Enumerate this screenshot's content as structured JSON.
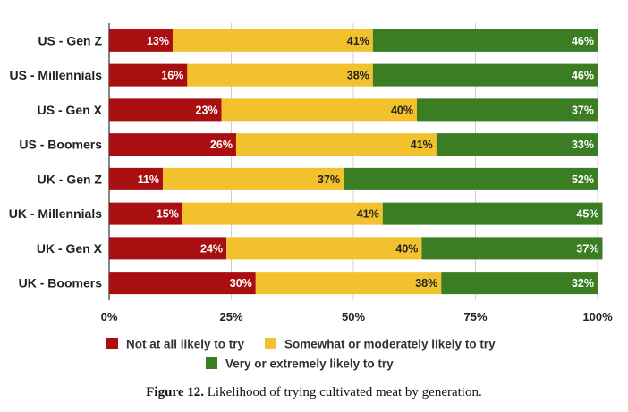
{
  "chart_data": {
    "type": "bar",
    "orientation": "horizontal",
    "stacked": true,
    "categories": [
      "US - Gen Z",
      "US - Millennials",
      "US - Gen X",
      "US - Boomers",
      "UK - Gen Z",
      "UK - Millennials",
      "UK - Gen X",
      "UK - Boomers"
    ],
    "series": [
      {
        "name": "Not at all likely to try",
        "color": "#a90f10",
        "values": [
          13,
          16,
          23,
          26,
          11,
          15,
          24,
          30
        ],
        "labels": [
          "13%",
          "16%",
          "23%",
          "26%",
          "11%",
          "15%",
          "24%",
          "30%"
        ]
      },
      {
        "name": "Somewhat or moderately likely to try",
        "color": "#f2c12e",
        "values": [
          41,
          38,
          40,
          41,
          37,
          41,
          40,
          38
        ],
        "labels": [
          "41%",
          "38%",
          "40%",
          "41%",
          "37%",
          "41%",
          "40%",
          "38%"
        ]
      },
      {
        "name": "Very or extremely likely to try",
        "color": "#3a7d22",
        "values": [
          46,
          46,
          37,
          33,
          52,
          45,
          37,
          32
        ],
        "labels": [
          "46%",
          "46%",
          "37%",
          "33%",
          "52%",
          "45%",
          "37%",
          "32%"
        ]
      }
    ],
    "xlim": [
      0,
      100
    ],
    "xticks": [
      "0%",
      "25%",
      "50%",
      "75%",
      "100%"
    ],
    "grid": true,
    "legend_placement": "bottom"
  },
  "caption": {
    "label": "Figure 12.",
    "text": "Likelihood of trying cultivated meat by generation."
  }
}
